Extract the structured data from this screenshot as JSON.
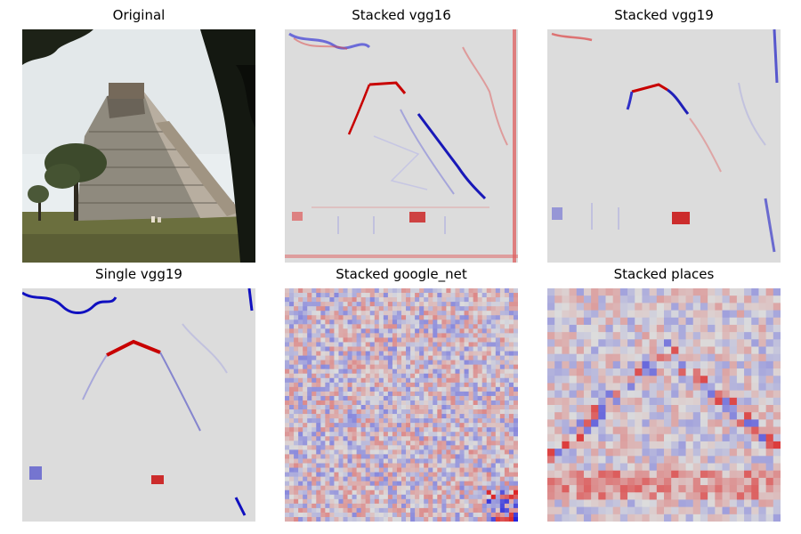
{
  "figure": {
    "panels": [
      {
        "title": "Original",
        "kind": "photo",
        "icon": "pyramid-photo"
      },
      {
        "title": "Stacked vgg16",
        "kind": "saliency-smooth",
        "icon": "saliency-heatmap"
      },
      {
        "title": "Stacked vgg19",
        "kind": "saliency-smooth",
        "icon": "saliency-heatmap"
      },
      {
        "title": "Single vgg19",
        "kind": "saliency-smooth",
        "icon": "saliency-heatmap"
      },
      {
        "title": "Stacked google_net",
        "kind": "saliency-noisy",
        "icon": "saliency-heatmap"
      },
      {
        "title": "Stacked places",
        "kind": "saliency-blocky",
        "icon": "saliency-heatmap"
      }
    ],
    "colors": {
      "positive": "#c80000",
      "negative": "#0000c8",
      "neutral": "#dcdcdc"
    }
  }
}
